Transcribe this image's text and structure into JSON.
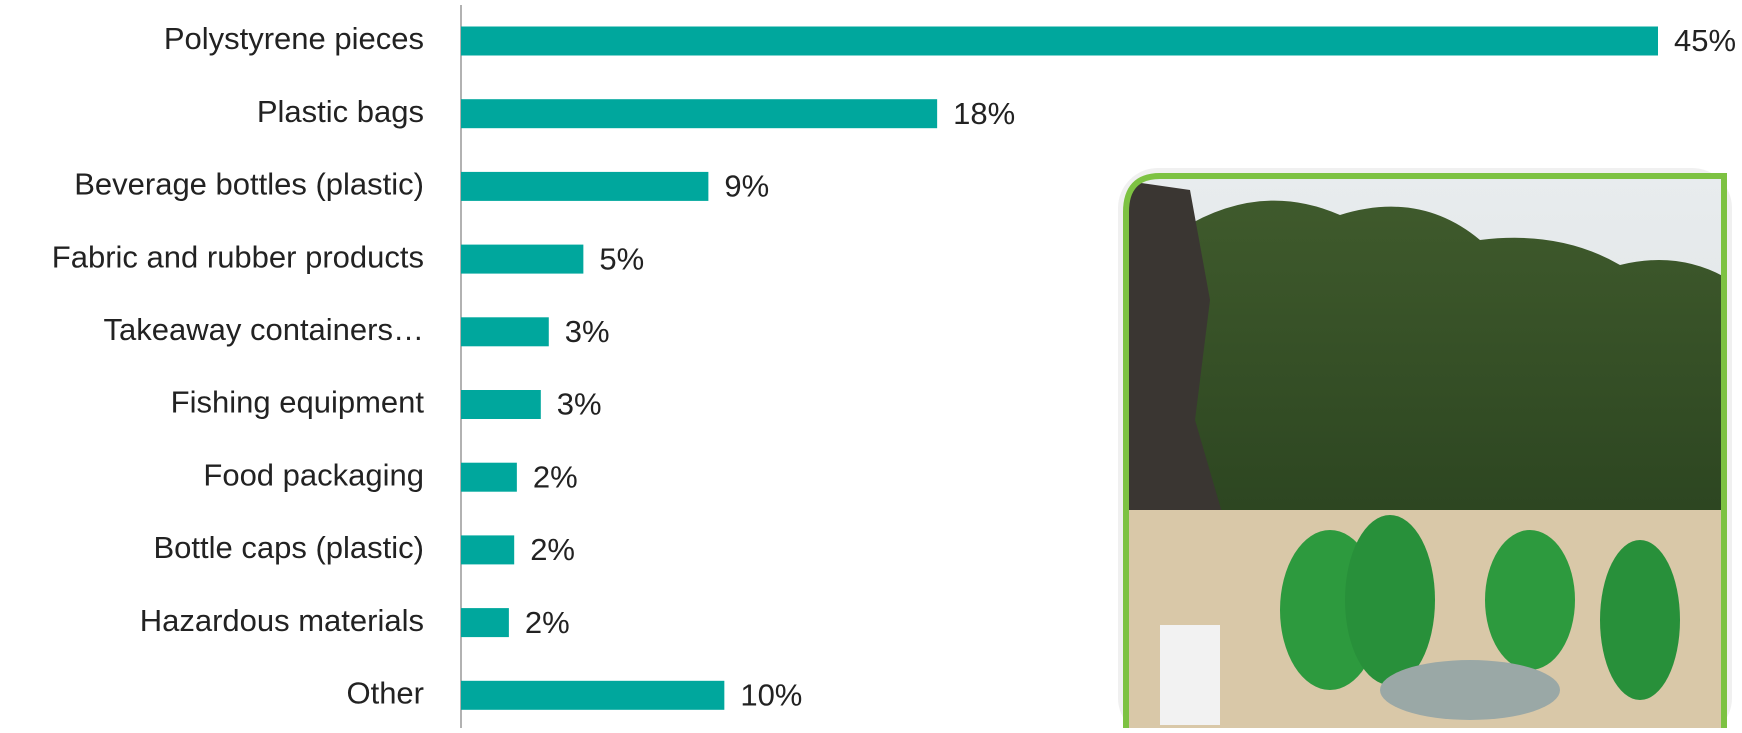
{
  "chart_data": {
    "type": "barh",
    "categories": [
      "Polystyrene pieces",
      "Plastic bags",
      "Beverage bottles (plastic)",
      "Fabric and rubber products",
      "Takeaway containers…",
      "Fishing equipment",
      "Food packaging",
      "Bottle caps (plastic)",
      "Hazardous materials",
      "Other"
    ],
    "values": [
      45,
      17.9,
      9.3,
      4.6,
      3.3,
      3.0,
      2.1,
      2.0,
      1.8,
      9.9
    ],
    "value_labels": [
      "45%",
      "18%",
      "9%",
      "5%",
      "3%",
      "3%",
      "2%",
      "2%",
      "2%",
      "10%"
    ],
    "color": "#00a79d"
  }
}
